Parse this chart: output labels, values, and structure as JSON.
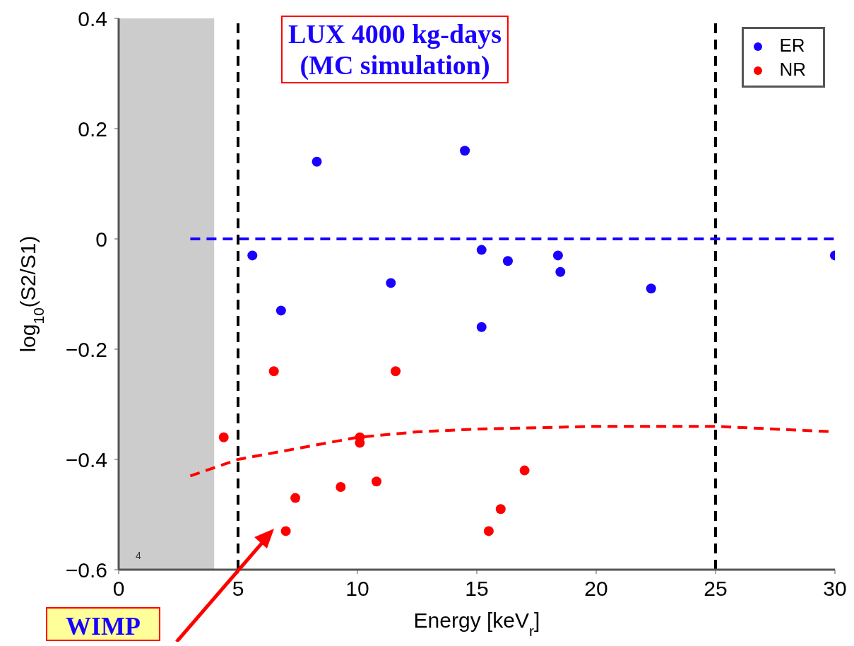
{
  "chart_data": {
    "type": "scatter",
    "xlabel": "Energy [keV$_{r}$]",
    "ylabel": "log$_{10}$(S2/S1)",
    "annotations": [
      "LUX 4000 kg-days\n(MC simulation)",
      "4",
      "WIMP"
    ],
    "series": [
      {
        "name": "ER",
        "color": "#1a00ff",
        "x": [
          5.6,
          6.8,
          8.3,
          11.4,
          14.5,
          15.2,
          15.2,
          16.3,
          18.4,
          18.5,
          22.3,
          30.0
        ],
        "values": [
          -0.03,
          -0.13,
          0.14,
          -0.08,
          0.16,
          -0.02,
          -0.16,
          -0.04,
          -0.03,
          -0.06,
          -0.09,
          -0.03
        ]
      },
      {
        "name": "NR",
        "color": "#ff0000",
        "x": [
          4.4,
          6.5,
          7.0,
          7.4,
          9.3,
          10.1,
          10.1,
          10.8,
          11.6,
          15.5,
          16.0,
          17.0
        ],
        "values": [
          -0.36,
          -0.24,
          -0.53,
          -0.47,
          -0.45,
          -0.36,
          -0.37,
          -0.44,
          -0.24,
          -0.53,
          -0.49,
          -0.42
        ]
      },
      {
        "type": "line",
        "color": "#ff0000",
        "line_style": "dashed",
        "marker": "none",
        "x": [
          3,
          5,
          7.5,
          10,
          12.5,
          15,
          20,
          25,
          30
        ],
        "values": [
          -0.43,
          -0.4,
          -0.38,
          -0.36,
          -0.35,
          -0.345,
          -0.34,
          -0.34,
          -0.35
        ]
      },
      {
        "type": "line",
        "color": "#1a00ff",
        "line_style": "dashed",
        "marker": "none",
        "x": [
          3,
          30
        ],
        "values": [
          0,
          0
        ]
      }
    ],
    "xlim": [
      0,
      30
    ],
    "xticks": [
      0,
      5,
      10,
      15,
      20,
      25,
      30
    ],
    "ylim": [
      -0.6,
      0.4
    ],
    "yticks": [
      {
        "value": -0.6,
        "label": "−0.6"
      },
      {
        "value": -0.4,
        "label": "−0.4"
      },
      {
        "value": -0.2,
        "label": "−0.2"
      },
      0,
      0.2,
      0.4
    ],
    "ref_lines": [
      {
        "axis": "x",
        "value": 5,
        "color": "#000000",
        "line_style": "dashed"
      },
      {
        "axis": "x",
        "value": 25,
        "color": "#000000",
        "line_style": "dashed"
      }
    ],
    "bands": [
      {
        "axis": "x",
        "from": 0,
        "to": 4,
        "color": "#cccccc"
      }
    ],
    "marker": "circle",
    "legend": "top right"
  }
}
